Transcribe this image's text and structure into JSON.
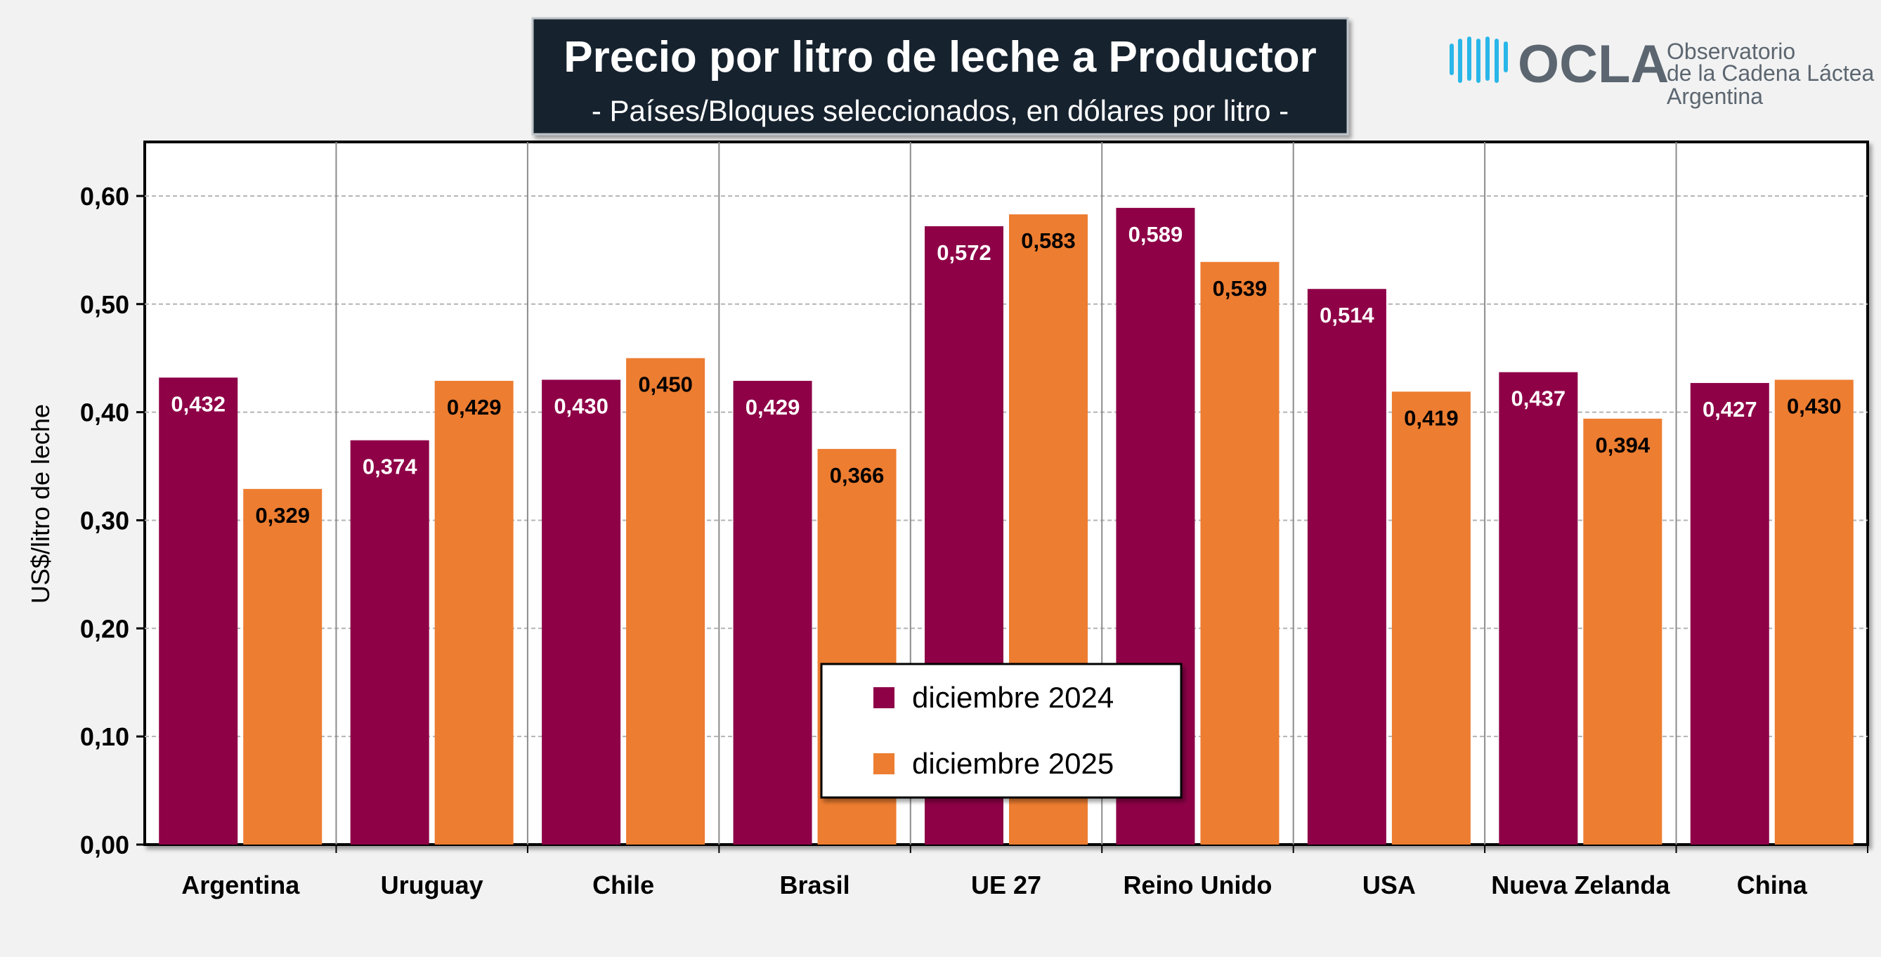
{
  "title": "Precio por litro de leche a Productor",
  "subtitle": "- Países/Bloques seleccionados, en dólares por litro -",
  "logo": {
    "name": "OCLA",
    "line1": "Observatorio",
    "line2": "de la Cadena Láctea",
    "line3": "Argentina"
  },
  "colors": {
    "series_2024": "#8E0147",
    "series_2025": "#ED7D31",
    "title_bg": "#17232D",
    "logo_blue": "#29B6E8",
    "logo_gray": "#5C6670"
  },
  "chart_data": {
    "type": "bar",
    "categories": [
      "Argentina",
      "Uruguay",
      "Chile",
      "Brasil",
      "UE 27",
      "Reino Unido",
      "USA",
      "Nueva Zelanda",
      "China"
    ],
    "series": [
      {
        "name": "diciembre 2024",
        "values": [
          0.432,
          0.374,
          0.43,
          0.429,
          0.572,
          0.589,
          0.514,
          0.437,
          0.427
        ],
        "labels": [
          "0,432",
          "0,374",
          "0,430",
          "0,429",
          "0,572",
          "0,589",
          "0,514",
          "0,437",
          "0,427"
        ]
      },
      {
        "name": "diciembre 2025",
        "values": [
          0.329,
          0.429,
          0.45,
          0.366,
          0.583,
          0.539,
          0.419,
          0.394,
          0.43
        ],
        "labels": [
          "0,329",
          "0,429",
          "0,450",
          "0,366",
          "0,583",
          "0,539",
          "0,419",
          "0,394",
          "0,430"
        ]
      }
    ],
    "ylabel": "US$/litro de leche",
    "ylim": [
      0,
      0.65
    ],
    "yticks": [
      0,
      0.1,
      0.2,
      0.3,
      0.4,
      0.5,
      0.6
    ],
    "ytick_labels": [
      "0,00",
      "0,10",
      "0,20",
      "0,30",
      "0,40",
      "0,50",
      "0,60"
    ],
    "grid": true,
    "legend_position": "center-bottom"
  }
}
